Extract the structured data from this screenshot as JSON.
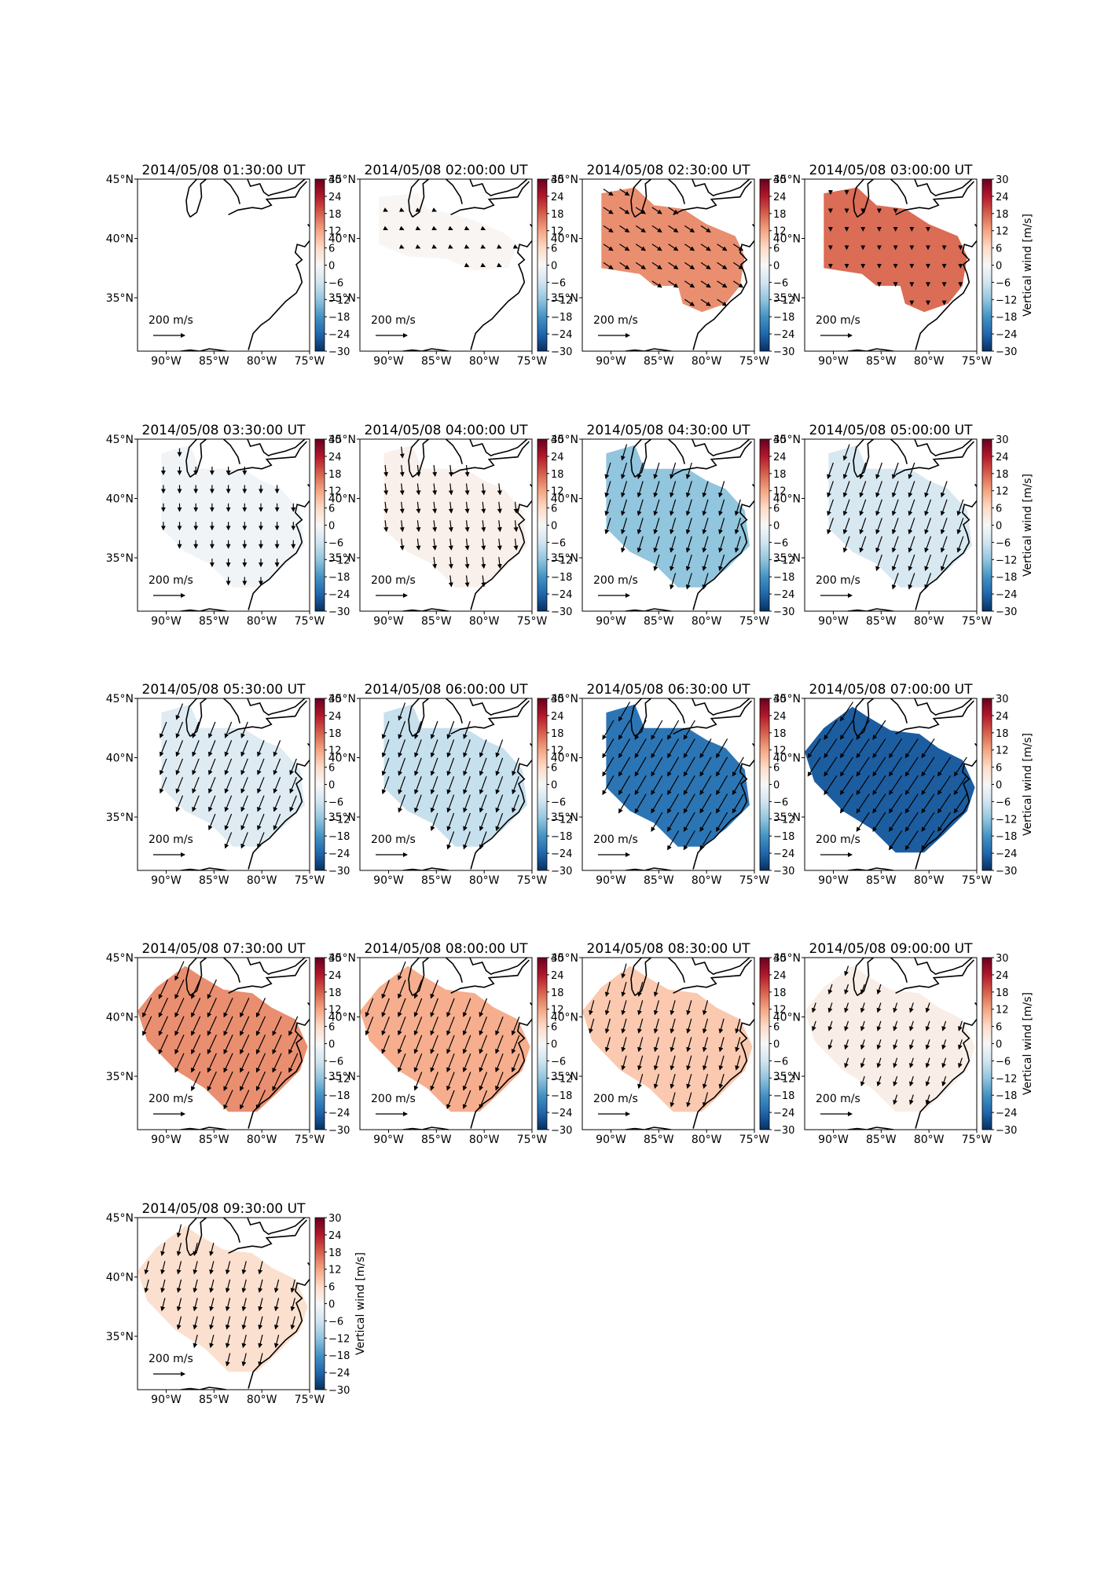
{
  "chart_data": {
    "type": "heatmap",
    "colormap": "RdBu_r",
    "colorbar": {
      "range": [
        -30,
        30
      ],
      "ticks": [
        "30",
        "24",
        "18",
        "12",
        "6",
        "0",
        "−6",
        "−12",
        "−18",
        "−24",
        "−30"
      ],
      "label": "Vertical wind [m/s]"
    },
    "map_axes": {
      "lon_ticks": [
        "90°W",
        "85°W",
        "80°W",
        "75°W"
      ],
      "lat_ticks": [
        "45°N",
        "40°N",
        "35°N"
      ],
      "lon_range": [
        -93,
        -75
      ],
      "lat_range": [
        30.5,
        45
      ]
    },
    "quiver_key": "200 m/s",
    "quiver_key_text": "200 m/s",
    "panels": [
      {
        "title": "2014/05/08 01:30:00 UT",
        "vertical_wind": 0,
        "region": "none",
        "wind": [
          0,
          0
        ]
      },
      {
        "title": "2014/05/08 02:00:00 UT",
        "vertical_wind": 0.5,
        "region": "small",
        "wind": [
          22,
          -10
        ]
      },
      {
        "title": "2014/05/08 02:30:00 UT",
        "vertical_wind": 14,
        "region": "medium",
        "wind": [
          60,
          -40
        ]
      },
      {
        "title": "2014/05/08 03:00:00 UT",
        "vertical_wind": 17,
        "region": "medium",
        "wind": [
          0,
          -25
        ]
      },
      {
        "title": "2014/05/08 03:30:00 UT",
        "vertical_wind": -1,
        "region": "large",
        "wind": [
          0,
          -50
        ]
      },
      {
        "title": "2014/05/08 04:00:00 UT",
        "vertical_wind": 1.5,
        "region": "large",
        "wind": [
          8,
          -70
        ]
      },
      {
        "title": "2014/05/08 04:30:00 UT",
        "vertical_wind": -12,
        "region": "large",
        "wind": [
          -30,
          -100
        ]
      },
      {
        "title": "2014/05/08 05:00:00 UT",
        "vertical_wind": -5,
        "region": "large",
        "wind": [
          -35,
          -100
        ]
      },
      {
        "title": "2014/05/08 05:30:00 UT",
        "vertical_wind": -4,
        "region": "large",
        "wind": [
          -40,
          -100
        ]
      },
      {
        "title": "2014/05/08 06:00:00 UT",
        "vertical_wind": -7,
        "region": "large",
        "wind": [
          -40,
          -110
        ]
      },
      {
        "title": "2014/05/08 06:30:00 UT",
        "vertical_wind": -22,
        "region": "large",
        "wind": [
          -70,
          -120
        ]
      },
      {
        "title": "2014/05/08 07:00:00 UT",
        "vertical_wind": -25,
        "region": "xlarge",
        "wind": [
          -80,
          -120
        ]
      },
      {
        "title": "2014/05/08 07:30:00 UT",
        "vertical_wind": 14,
        "region": "xlarge",
        "wind": [
          -55,
          -120
        ]
      },
      {
        "title": "2014/05/08 08:00:00 UT",
        "vertical_wind": 11,
        "region": "xlarge",
        "wind": [
          -45,
          -115
        ]
      },
      {
        "title": "2014/05/08 08:30:00 UT",
        "vertical_wind": 8,
        "region": "xlarge",
        "wind": [
          -25,
          -90
        ]
      },
      {
        "title": "2014/05/08 09:00:00 UT",
        "vertical_wind": 2,
        "region": "xlarge",
        "wind": [
          -20,
          -60
        ]
      },
      {
        "title": "2014/05/08 09:30:00 UT",
        "vertical_wind": 5,
        "region": "xlarge",
        "wind": [
          -20,
          -80
        ]
      }
    ]
  }
}
